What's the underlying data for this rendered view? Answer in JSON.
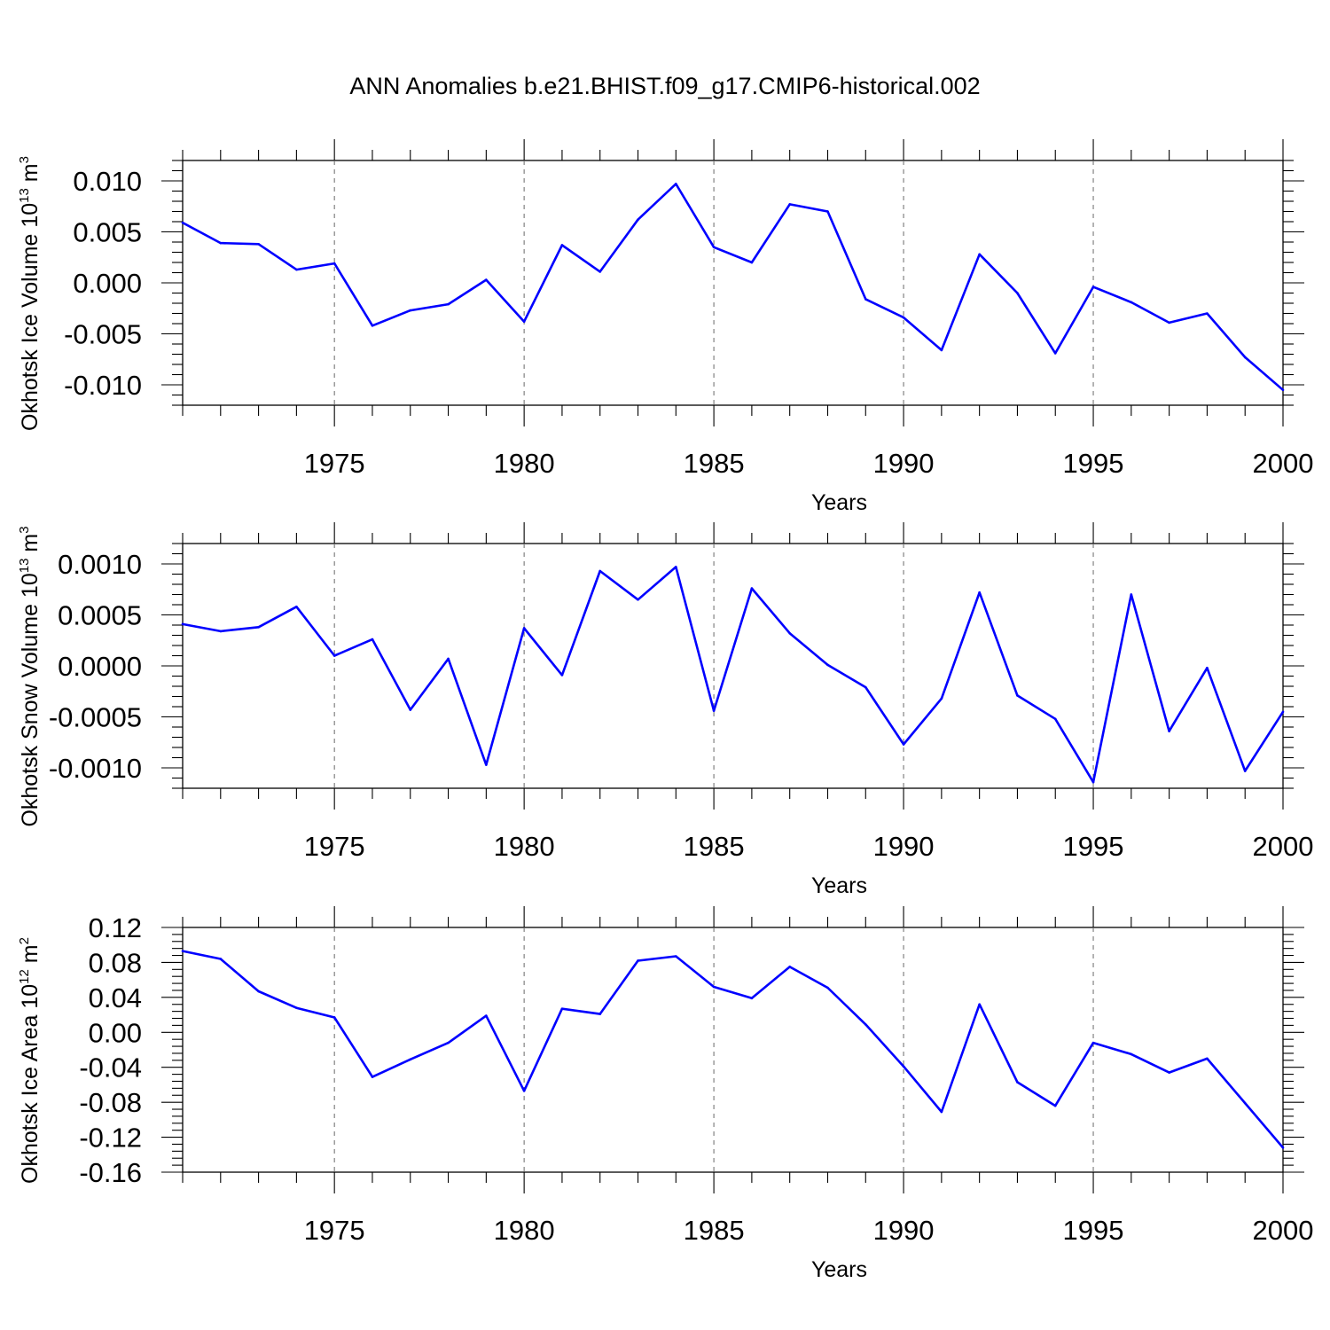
{
  "title": "ANN Anomalies b.e21.BHIST.f09_g17.CMIP6-historical.002",
  "colors": {
    "series": "#0000ff",
    "grid": "#777777",
    "axis": "#000000"
  },
  "chart_data": [
    {
      "type": "line",
      "ylabel": "Okhotsk Ice Volume 10",
      "ylabel_exp": "13",
      "ylabel_unit": "m",
      "ylabel_unit_exp": "3",
      "xlabel": "Years",
      "xlim": [
        1971,
        2000
      ],
      "ylim": [
        -0.012,
        0.012
      ],
      "grid": "vertical dashed at major x ticks",
      "x_ticks": [
        1975,
        1980,
        1985,
        1990,
        1995,
        2000
      ],
      "y_ticks": [
        "0.010",
        "0.005",
        "0.000",
        "-0.005",
        "-0.010"
      ],
      "y_tick_values": [
        0.01,
        0.005,
        0.0,
        -0.005,
        -0.01
      ],
      "x": [
        1971,
        1972,
        1973,
        1974,
        1975,
        1976,
        1977,
        1978,
        1979,
        1980,
        1981,
        1982,
        1983,
        1984,
        1985,
        1986,
        1987,
        1988,
        1989,
        1990,
        1991,
        1992,
        1993,
        1994,
        1995,
        1996,
        1997,
        1998,
        1999,
        2000
      ],
      "values": [
        0.0059,
        0.0039,
        0.0038,
        0.0013,
        0.0019,
        -0.0042,
        -0.0027,
        -0.0021,
        0.0003,
        -0.0038,
        0.0037,
        0.0011,
        0.0062,
        0.0097,
        0.0035,
        0.002,
        0.0077,
        0.007,
        -0.0016,
        -0.0034,
        -0.0066,
        0.0028,
        -0.001,
        -0.0069,
        -0.0004,
        -0.0019,
        -0.0039,
        -0.003,
        -0.0073,
        -0.0105
      ]
    },
    {
      "type": "line",
      "ylabel": "Okhotsk Snow Volume 10",
      "ylabel_exp": "13",
      "ylabel_unit": "m",
      "ylabel_unit_exp": "3",
      "xlabel": "Years",
      "xlim": [
        1971,
        2000
      ],
      "ylim": [
        -0.0012,
        0.0012
      ],
      "grid": "vertical dashed at major x ticks",
      "x_ticks": [
        1975,
        1980,
        1985,
        1990,
        1995,
        2000
      ],
      "y_ticks": [
        "0.0010",
        "0.0005",
        "0.0000",
        "-0.0005",
        "-0.0010"
      ],
      "y_tick_values": [
        0.001,
        0.0005,
        0.0,
        -0.0005,
        -0.001
      ],
      "x": [
        1971,
        1972,
        1973,
        1974,
        1975,
        1976,
        1977,
        1978,
        1979,
        1980,
        1981,
        1982,
        1983,
        1984,
        1985,
        1986,
        1987,
        1988,
        1989,
        1990,
        1991,
        1992,
        1993,
        1994,
        1995,
        1996,
        1997,
        1998,
        1999,
        2000
      ],
      "values": [
        0.00041,
        0.00034,
        0.00038,
        0.00058,
        0.0001,
        0.00026,
        -0.00043,
        7e-05,
        -0.00097,
        0.00037,
        -9e-05,
        0.00093,
        0.00065,
        0.00097,
        -0.00044,
        0.00076,
        0.00032,
        1e-05,
        -0.00021,
        -0.00077,
        -0.00032,
        0.00072,
        -0.00029,
        -0.00052,
        -0.00114,
        0.0007,
        -0.00064,
        -2e-05,
        -0.00103,
        -0.00045
      ]
    },
    {
      "type": "line",
      "ylabel": "Okhotsk Ice Area 10",
      "ylabel_exp": "12",
      "ylabel_unit": "m",
      "ylabel_unit_exp": "2",
      "xlabel": "Years",
      "xlim": [
        1971,
        2000
      ],
      "ylim": [
        -0.16,
        0.12
      ],
      "grid": "vertical dashed at major x ticks",
      "x_ticks": [
        1975,
        1980,
        1985,
        1990,
        1995,
        2000
      ],
      "y_ticks": [
        "0.12",
        "0.08",
        "0.04",
        "0.00",
        "-0.04",
        "-0.08",
        "-0.12",
        "-0.16"
      ],
      "y_tick_values": [
        0.12,
        0.08,
        0.04,
        0.0,
        -0.04,
        -0.08,
        -0.12,
        -0.16
      ],
      "x": [
        1971,
        1972,
        1973,
        1974,
        1975,
        1976,
        1977,
        1978,
        1979,
        1980,
        1981,
        1982,
        1983,
        1984,
        1985,
        1986,
        1987,
        1988,
        1989,
        1990,
        1991,
        1992,
        1993,
        1994,
        1995,
        1996,
        1997,
        1998,
        1999,
        2000
      ],
      "values": [
        0.093,
        0.084,
        0.047,
        0.028,
        0.017,
        -0.051,
        -0.031,
        -0.012,
        0.019,
        -0.067,
        0.027,
        0.021,
        0.082,
        0.087,
        0.052,
        0.039,
        0.075,
        0.051,
        0.009,
        -0.039,
        -0.091,
        0.032,
        -0.057,
        -0.084,
        -0.012,
        -0.025,
        -0.046,
        -0.03,
        -0.081,
        -0.132
      ]
    }
  ]
}
